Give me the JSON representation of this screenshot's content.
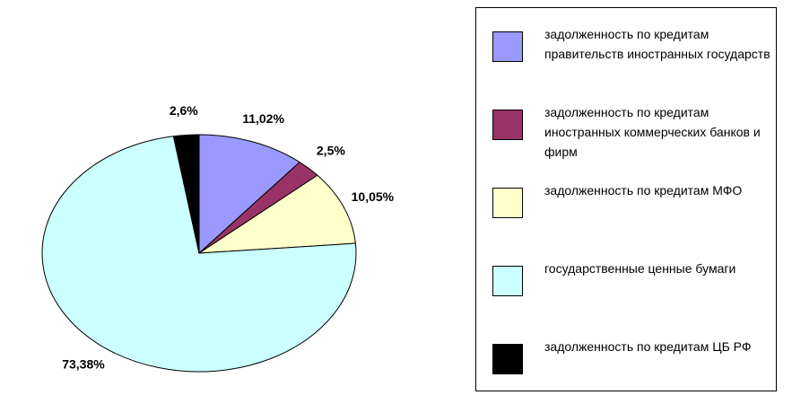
{
  "chart_data": {
    "type": "pie",
    "categories": [
      "задолженность по кредитам правительств иностранных государств",
      "задолженность по кредитам иностранных коммерческих банков и фирм",
      "задолженность по кредитам МФО",
      "государственные ценные бумаги",
      "задолженность по кредитам ЦБ РФ"
    ],
    "values": [
      11.02,
      2.5,
      10.05,
      73.38,
      2.6
    ],
    "value_labels": [
      "11,02%",
      "2,5%",
      "10,05%",
      "73,38%",
      "2,6%"
    ],
    "colors": [
      "#9999ff",
      "#993366",
      "#ffffcc",
      "#ccffff",
      "#000000"
    ],
    "legend": "right"
  }
}
